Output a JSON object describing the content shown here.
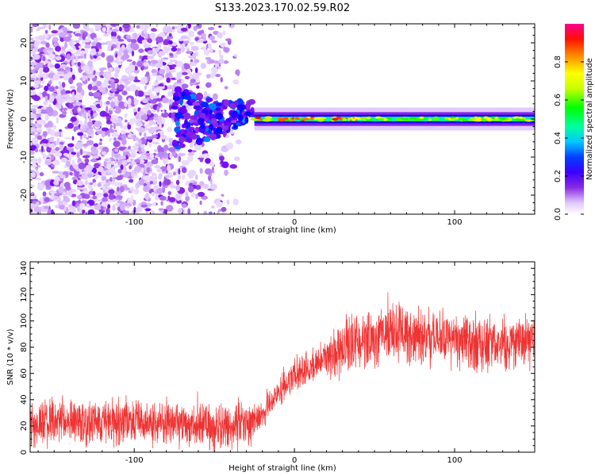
{
  "figure": {
    "title": "S133.2023.170.02.59.R02"
  },
  "chart_data": [
    {
      "type": "heatmap",
      "name": "spectrogram",
      "xlabel": "Height of straight line (km)",
      "ylabel": "Frequency (Hz)",
      "xlim": [
        -165,
        150
      ],
      "ylim": [
        -25,
        25
      ],
      "x_ticks": [
        -100,
        0,
        100
      ],
      "y_ticks": [
        -20,
        -10,
        0,
        10,
        20
      ],
      "colorbar": {
        "label": "Normalized spectral amplitude",
        "range": [
          0.0,
          1.0
        ],
        "ticks": [
          0.0,
          0.2,
          0.4,
          0.6,
          0.8
        ],
        "colormap": [
          "#ffffff",
          "#e0c8ff",
          "#8a2be2",
          "#6a00ff",
          "#0000ff",
          "#00c8ff",
          "#00ff80",
          "#00ff00",
          "#c8ff00",
          "#ffff00",
          "#ff8000",
          "#ff0000",
          "#ff0080"
        ]
      },
      "features": {
        "noise_region_x": [
          -165,
          -40
        ],
        "transition_region_x": [
          -75,
          -25
        ],
        "signal_line_x": [
          -25,
          150
        ],
        "signal_line_freq": 0
      }
    },
    {
      "type": "line",
      "name": "snr",
      "xlabel": "Height of straight line (km)",
      "ylabel": "SNR (10 * v/v)",
      "xlim": [
        -165,
        150
      ],
      "ylim": [
        0,
        145
      ],
      "x_ticks": [
        -100,
        0,
        100
      ],
      "y_ticks": [
        0,
        20,
        40,
        60,
        80,
        100,
        120,
        140
      ],
      "color": "#ee3333",
      "trend_x": [
        -165,
        -140,
        -100,
        -60,
        -40,
        -30,
        -20,
        -10,
        0,
        10,
        20,
        40,
        60,
        80,
        100,
        120,
        150
      ],
      "trend_y": [
        22,
        23,
        24,
        21,
        18,
        20,
        30,
        45,
        58,
        65,
        75,
        85,
        90,
        88,
        84,
        82,
        84
      ]
    }
  ]
}
